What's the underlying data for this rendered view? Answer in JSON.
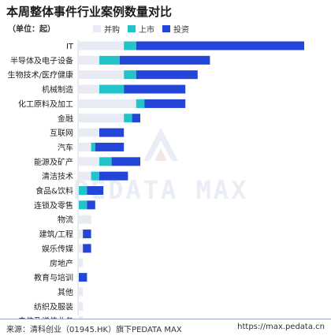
{
  "title": "本周整体事件行业案例数量对比",
  "unit": "（单位：起）",
  "footer": {
    "source": "来源：清科创业（01945.HK）旗下PEDATA MAX",
    "url": "https://max.pedata.cn"
  },
  "watermark": "PEDATA MAX",
  "colors": {
    "merger": "#e8ebf3",
    "ipo": "#22c3c9",
    "investment": "#2346d8",
    "watermark": "#e9edf5"
  },
  "chart_data": {
    "type": "bar",
    "orientation": "horizontal",
    "stacked": true,
    "categories": [
      "IT",
      "半导体及电子设备",
      "生物技术/医疗健康",
      "机械制造",
      "化工原料及加工",
      "金融",
      "互联网",
      "汽车",
      "能源及矿产",
      "清洁技术",
      "食品&饮料",
      "连锁及零售",
      "物流",
      "建筑/工程",
      "娱乐传媒",
      "房地产",
      "教育与培训",
      "其他",
      "纺织及服装",
      "电信及增值业务"
    ],
    "series": [
      {
        "name": "并购",
        "values": [
          11,
          5,
          11,
          5,
          14,
          11,
          5,
          3,
          5,
          3,
          0,
          0,
          3,
          1,
          1,
          1,
          0,
          1,
          1,
          1
        ]
      },
      {
        "name": "上市",
        "values": [
          3,
          5,
          3,
          6,
          2,
          2,
          0,
          1,
          3,
          2,
          2,
          2,
          0,
          0,
          0,
          0,
          0,
          0,
          0,
          0
        ]
      },
      {
        "name": "投资",
        "values": [
          41,
          22,
          15,
          15,
          10,
          2,
          6,
          7,
          7,
          7,
          4,
          2,
          0,
          2,
          2,
          0,
          2,
          0,
          0,
          0
        ]
      }
    ],
    "legend": "top-left",
    "grid": false
  }
}
